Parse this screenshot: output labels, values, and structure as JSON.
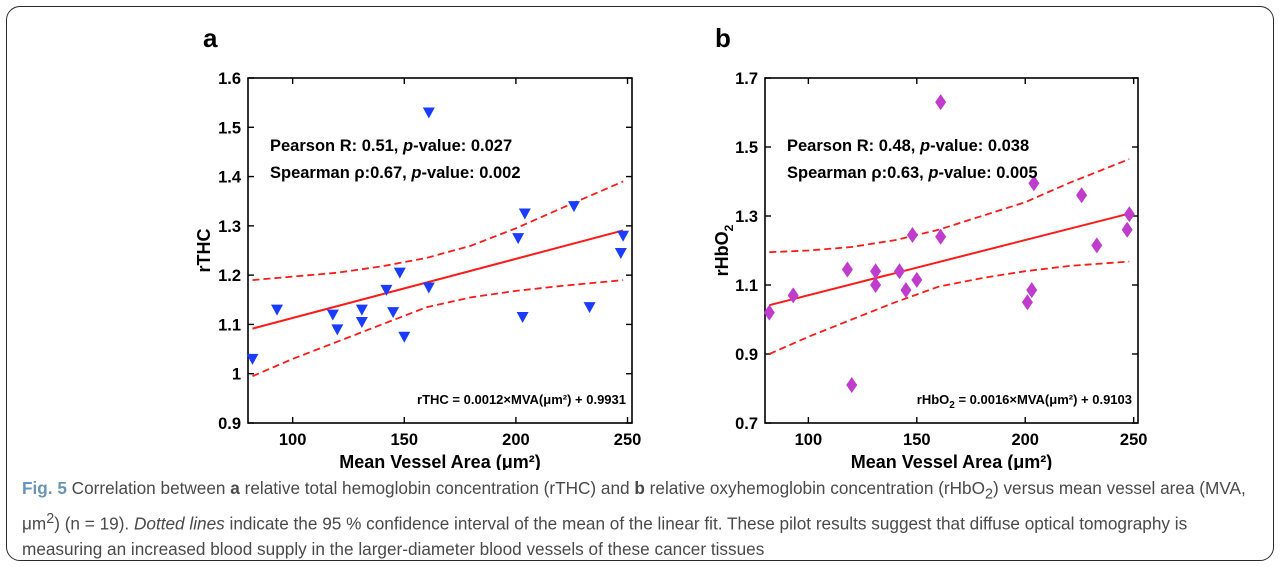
{
  "chart_data": [
    {
      "type": "scatter",
      "panel_label": "a",
      "xlabel": "Mean Vessel Area (μm²)",
      "ylabel": "rTHC",
      "xlim": [
        80,
        252
      ],
      "ylim": [
        0.9,
        1.6
      ],
      "xticks": [
        100,
        150,
        200,
        250
      ],
      "yticks": [
        0.9,
        1,
        1.1,
        1.2,
        1.3,
        1.4,
        1.5,
        1.6
      ],
      "ytick_labels": [
        "0.9",
        "1",
        "1.1",
        "1.2",
        "1.3",
        "1.4",
        "1.5",
        "1.6"
      ],
      "marker": "triangle-down",
      "marker_color": "#1a3cff",
      "points": [
        [
          82,
          1.03
        ],
        [
          93,
          1.13
        ],
        [
          118,
          1.12
        ],
        [
          120,
          1.09
        ],
        [
          131,
          1.13
        ],
        [
          131,
          1.105
        ],
        [
          142,
          1.17
        ],
        [
          145,
          1.125
        ],
        [
          148,
          1.205
        ],
        [
          150,
          1.075
        ],
        [
          161,
          1.53
        ],
        [
          161,
          1.175
        ],
        [
          201,
          1.275
        ],
        [
          203,
          1.115
        ],
        [
          204,
          1.325
        ],
        [
          226,
          1.34
        ],
        [
          233,
          1.135
        ],
        [
          247,
          1.245
        ],
        [
          248,
          1.28
        ]
      ],
      "fit": {
        "slope": 0.0012,
        "intercept": 0.9931,
        "color": "#ff1a1a"
      },
      "ci_upper": [
        [
          82,
          1.19
        ],
        [
          100,
          1.197
        ],
        [
          120,
          1.205
        ],
        [
          140,
          1.218
        ],
        [
          160,
          1.235
        ],
        [
          180,
          1.26
        ],
        [
          200,
          1.295
        ],
        [
          220,
          1.335
        ],
        [
          248,
          1.39
        ]
      ],
      "ci_lower": [
        [
          82,
          0.995
        ],
        [
          100,
          1.03
        ],
        [
          120,
          1.065
        ],
        [
          140,
          1.1
        ],
        [
          160,
          1.135
        ],
        [
          180,
          1.155
        ],
        [
          200,
          1.168
        ],
        [
          220,
          1.178
        ],
        [
          248,
          1.19
        ]
      ],
      "annotations": {
        "pearson_prefix": "Pearson R: 0.51,  ",
        "pearson_p_italic": "p",
        "pearson_suffix": "-value: 0.027",
        "spearman_prefix": "Spearman ρ:0.67, ",
        "spearman_p_italic": "p",
        "spearman_suffix": "-value: 0.002",
        "equation": "rTHC = 0.0012×MVA(μm²) + 0.9931"
      },
      "grid": false
    },
    {
      "type": "scatter",
      "panel_label": "b",
      "xlabel": "Mean Vessel Area (μm²)",
      "ylabel_main": "rHbO",
      "ylabel_sub": "2",
      "xlim": [
        80,
        252
      ],
      "ylim": [
        0.7,
        1.7
      ],
      "xticks": [
        100,
        150,
        200,
        250
      ],
      "yticks": [
        0.7,
        0.9,
        1.1,
        1.3,
        1.5,
        1.7
      ],
      "ytick_labels": [
        "0.7",
        "0.9",
        "1.1",
        "1.3",
        "1.5",
        "1.7"
      ],
      "marker": "diamond",
      "marker_color": "#c03ccc",
      "points": [
        [
          82,
          1.02
        ],
        [
          93,
          1.07
        ],
        [
          118,
          1.145
        ],
        [
          120,
          0.81
        ],
        [
          131,
          1.14
        ],
        [
          131,
          1.1
        ],
        [
          142,
          1.14
        ],
        [
          145,
          1.085
        ],
        [
          148,
          1.245
        ],
        [
          150,
          1.115
        ],
        [
          161,
          1.63
        ],
        [
          161,
          1.24
        ],
        [
          201,
          1.05
        ],
        [
          203,
          1.085
        ],
        [
          204,
          1.395
        ],
        [
          226,
          1.36
        ],
        [
          233,
          1.215
        ],
        [
          247,
          1.26
        ],
        [
          248,
          1.305
        ]
      ],
      "fit": {
        "slope": 0.0016,
        "intercept": 0.9103,
        "color": "#ff1a1a"
      },
      "ci_upper": [
        [
          82,
          1.195
        ],
        [
          100,
          1.2
        ],
        [
          120,
          1.21
        ],
        [
          140,
          1.23
        ],
        [
          160,
          1.26
        ],
        [
          180,
          1.3
        ],
        [
          200,
          1.34
        ],
        [
          220,
          1.395
        ],
        [
          248,
          1.465
        ]
      ],
      "ci_lower": [
        [
          82,
          0.9
        ],
        [
          100,
          0.95
        ],
        [
          120,
          1.0
        ],
        [
          140,
          1.05
        ],
        [
          160,
          1.095
        ],
        [
          180,
          1.12
        ],
        [
          200,
          1.14
        ],
        [
          220,
          1.155
        ],
        [
          248,
          1.168
        ]
      ],
      "annotations": {
        "pearson_prefix": "Pearson R: 0.48,  ",
        "pearson_p_italic": "p",
        "pearson_suffix": "-value: 0.038",
        "spearman_prefix": "Spearman ρ:0.63, ",
        "spearman_p_italic": "p",
        "spearman_suffix": "-value: 0.005",
        "equation_main": "rHbO",
        "equation_sub": "2",
        "equation_rest": " = 0.0016×MVA(μm²) + 0.9103"
      },
      "grid": false
    }
  ],
  "caption": {
    "fig_label": "Fig. 5",
    "t1": " Correlation between ",
    "a": "a",
    "t2": " relative total hemoglobin concentration (rTHC) and ",
    "b": "b",
    "t3": " relative oxyhemoglobin concentration (rHbO",
    "sub2": "2",
    "t4": ") versus mean vessel area (MVA, μm",
    "sup2": "2",
    "t5": ") (n = 19). ",
    "dotted": "Dotted lines",
    "t6": " indicate the 95 % confidence interval of the mean of the linear fit. These pilot results suggest that diffuse optical tomography is measuring an increased blood supply in the larger-diameter blood vessels of these cancer tissues"
  }
}
